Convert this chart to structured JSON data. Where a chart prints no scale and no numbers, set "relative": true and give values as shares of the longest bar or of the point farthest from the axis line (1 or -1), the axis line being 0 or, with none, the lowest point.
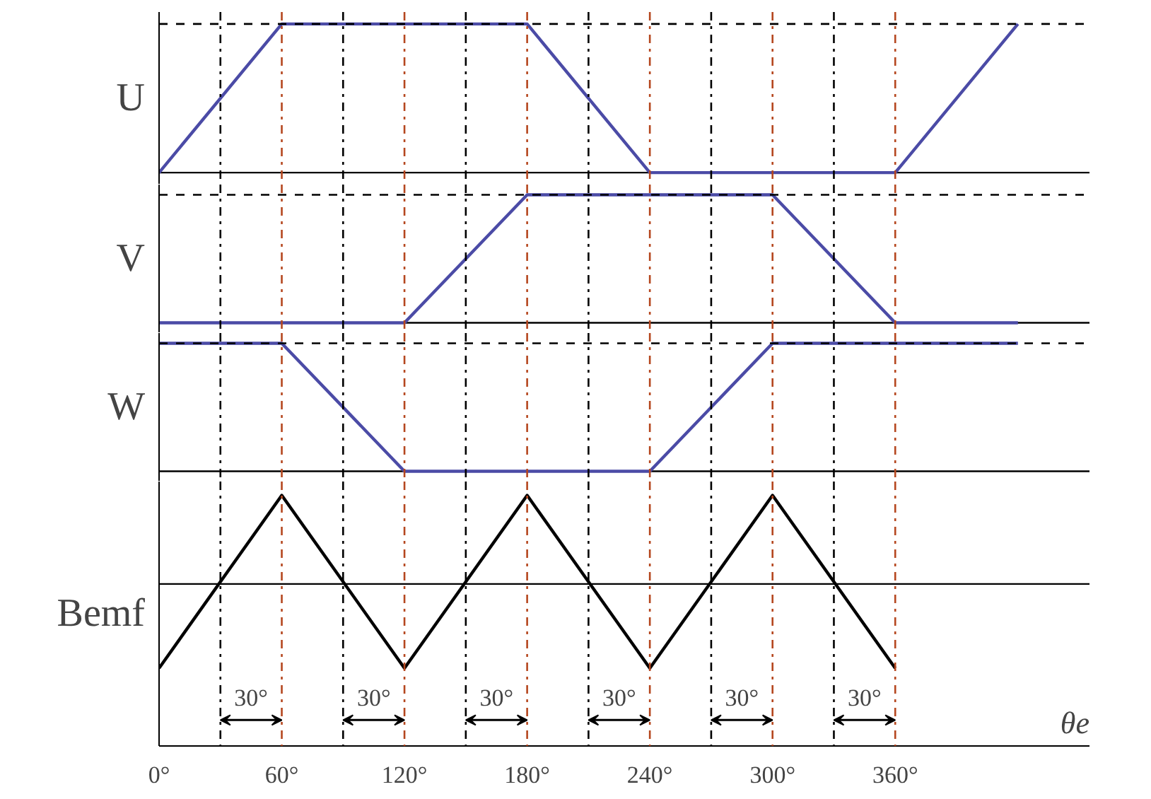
{
  "chart_data": [
    {
      "type": "line",
      "ylabel": "U",
      "relative": true,
      "xlim": [
        0,
        455
      ],
      "tick_labels": false,
      "grid": false,
      "marker": "none",
      "line_style": "solid",
      "series": [
        {
          "color": "#4b4ba6",
          "x": [
            0,
            60,
            180,
            240,
            360,
            420
          ],
          "values": [
            0,
            1,
            1,
            0,
            0,
            1
          ]
        }
      ],
      "ref_lines": [
        {
          "axis": "y",
          "value": 1,
          "color": "#000000",
          "line_style": "dashed"
        },
        {
          "axis": "x",
          "value": 30,
          "color": "#000000",
          "line_style": "dashdot"
        },
        {
          "axis": "x",
          "value": 60,
          "color": "#b5471f",
          "line_style": "dashdot"
        },
        {
          "axis": "x",
          "value": 90,
          "color": "#000000",
          "line_style": "dashdot"
        },
        {
          "axis": "x",
          "value": 120,
          "color": "#b5471f",
          "line_style": "dashdot"
        },
        {
          "axis": "x",
          "value": 150,
          "color": "#000000",
          "line_style": "dashdot"
        },
        {
          "axis": "x",
          "value": 180,
          "color": "#b5471f",
          "line_style": "dashdot"
        },
        {
          "axis": "x",
          "value": 210,
          "color": "#000000",
          "line_style": "dashdot"
        },
        {
          "axis": "x",
          "value": 240,
          "color": "#b5471f",
          "line_style": "dashdot"
        },
        {
          "axis": "x",
          "value": 270,
          "color": "#000000",
          "line_style": "dashdot"
        },
        {
          "axis": "x",
          "value": 300,
          "color": "#b5471f",
          "line_style": "dashdot"
        },
        {
          "axis": "x",
          "value": 330,
          "color": "#000000",
          "line_style": "dashdot"
        },
        {
          "axis": "x",
          "value": 360,
          "color": "#b5471f",
          "line_style": "dashdot"
        }
      ]
    },
    {
      "type": "line",
      "ylabel": "V",
      "relative": true,
      "xlim": [
        0,
        455
      ],
      "tick_labels": false,
      "grid": false,
      "marker": "none",
      "line_style": "solid",
      "series": [
        {
          "color": "#4b4ba6",
          "x": [
            0,
            120,
            180,
            300,
            360,
            420
          ],
          "values": [
            0,
            0,
            1,
            1,
            0,
            0
          ]
        }
      ],
      "ref_lines": [
        {
          "axis": "y",
          "value": 1,
          "color": "#000000",
          "line_style": "dashed"
        },
        {
          "axis": "x",
          "value": 30,
          "color": "#000000",
          "line_style": "dashdot"
        },
        {
          "axis": "x",
          "value": 60,
          "color": "#b5471f",
          "line_style": "dashdot"
        },
        {
          "axis": "x",
          "value": 90,
          "color": "#000000",
          "line_style": "dashdot"
        },
        {
          "axis": "x",
          "value": 120,
          "color": "#b5471f",
          "line_style": "dashdot"
        },
        {
          "axis": "x",
          "value": 150,
          "color": "#000000",
          "line_style": "dashdot"
        },
        {
          "axis": "x",
          "value": 180,
          "color": "#b5471f",
          "line_style": "dashdot"
        },
        {
          "axis": "x",
          "value": 210,
          "color": "#000000",
          "line_style": "dashdot"
        },
        {
          "axis": "x",
          "value": 240,
          "color": "#b5471f",
          "line_style": "dashdot"
        },
        {
          "axis": "x",
          "value": 270,
          "color": "#000000",
          "line_style": "dashdot"
        },
        {
          "axis": "x",
          "value": 300,
          "color": "#b5471f",
          "line_style": "dashdot"
        },
        {
          "axis": "x",
          "value": 330,
          "color": "#000000",
          "line_style": "dashdot"
        },
        {
          "axis": "x",
          "value": 360,
          "color": "#b5471f",
          "line_style": "dashdot"
        }
      ]
    },
    {
      "type": "line",
      "ylabel": "W",
      "relative": true,
      "xlim": [
        0,
        455
      ],
      "tick_labels": false,
      "grid": false,
      "marker": "none",
      "line_style": "solid",
      "series": [
        {
          "color": "#4b4ba6",
          "x": [
            0,
            60,
            120,
            240,
            300,
            420
          ],
          "values": [
            1,
            1,
            0,
            0,
            1,
            1
          ]
        }
      ],
      "ref_lines": [
        {
          "axis": "y",
          "value": 1,
          "color": "#000000",
          "line_style": "dashed"
        },
        {
          "axis": "x",
          "value": 30,
          "color": "#000000",
          "line_style": "dashdot"
        },
        {
          "axis": "x",
          "value": 60,
          "color": "#b5471f",
          "line_style": "dashdot"
        },
        {
          "axis": "x",
          "value": 90,
          "color": "#000000",
          "line_style": "dashdot"
        },
        {
          "axis": "x",
          "value": 120,
          "color": "#b5471f",
          "line_style": "dashdot"
        },
        {
          "axis": "x",
          "value": 150,
          "color": "#000000",
          "line_style": "dashdot"
        },
        {
          "axis": "x",
          "value": 180,
          "color": "#b5471f",
          "line_style": "dashdot"
        },
        {
          "axis": "x",
          "value": 210,
          "color": "#000000",
          "line_style": "dashdot"
        },
        {
          "axis": "x",
          "value": 240,
          "color": "#b5471f",
          "line_style": "dashdot"
        },
        {
          "axis": "x",
          "value": 270,
          "color": "#000000",
          "line_style": "dashdot"
        },
        {
          "axis": "x",
          "value": 300,
          "color": "#b5471f",
          "line_style": "dashdot"
        },
        {
          "axis": "x",
          "value": 330,
          "color": "#000000",
          "line_style": "dashdot"
        },
        {
          "axis": "x",
          "value": 360,
          "color": "#b5471f",
          "line_style": "dashdot"
        }
      ]
    },
    {
      "type": "line",
      "ylabel": "Bemf",
      "xlabel": "θe",
      "relative": true,
      "xlim": [
        0,
        455
      ],
      "tick_labels": "x",
      "grid": false,
      "marker": "none",
      "line_style": "solid",
      "xticks": [
        {
          "value": 0,
          "label": "0°"
        },
        {
          "value": 60,
          "label": "60°"
        },
        {
          "value": 120,
          "label": "120°"
        },
        {
          "value": 180,
          "label": "180°"
        },
        {
          "value": 240,
          "label": "240°"
        },
        {
          "value": 300,
          "label": "300°"
        },
        {
          "value": 360,
          "label": "360°"
        }
      ],
      "series": [
        {
          "color": "#000000",
          "x": [
            0,
            60,
            120,
            180,
            240,
            300,
            360
          ],
          "values": [
            -0.95,
            1,
            -0.95,
            1,
            -0.95,
            1,
            -0.95
          ]
        }
      ],
      "ref_lines": [
        {
          "axis": "x",
          "value": 30,
          "color": "#000000",
          "line_style": "dashdot"
        },
        {
          "axis": "x",
          "value": 60,
          "color": "#b5471f",
          "line_style": "dashdot"
        },
        {
          "axis": "x",
          "value": 90,
          "color": "#000000",
          "line_style": "dashdot"
        },
        {
          "axis": "x",
          "value": 120,
          "color": "#b5471f",
          "line_style": "dashdot"
        },
        {
          "axis": "x",
          "value": 150,
          "color": "#000000",
          "line_style": "dashdot"
        },
        {
          "axis": "x",
          "value": 180,
          "color": "#b5471f",
          "line_style": "dashdot"
        },
        {
          "axis": "x",
          "value": 210,
          "color": "#000000",
          "line_style": "dashdot"
        },
        {
          "axis": "x",
          "value": 240,
          "color": "#b5471f",
          "line_style": "dashdot"
        },
        {
          "axis": "x",
          "value": 270,
          "color": "#000000",
          "line_style": "dashdot"
        },
        {
          "axis": "x",
          "value": 300,
          "color": "#b5471f",
          "line_style": "dashdot"
        },
        {
          "axis": "x",
          "value": 330,
          "color": "#000000",
          "line_style": "dashdot"
        },
        {
          "axis": "x",
          "value": 360,
          "color": "#b5471f",
          "line_style": "dashdot"
        }
      ],
      "annotations": [
        "30°",
        "30°",
        "30°",
        "30°",
        "30°",
        "30°"
      ]
    }
  ]
}
